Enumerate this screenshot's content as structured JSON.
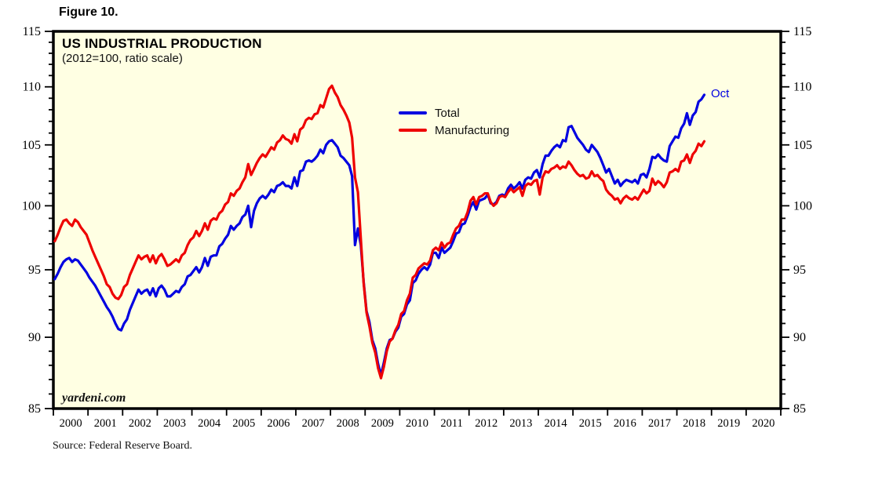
{
  "figure_label": "Figure 10.",
  "source_note": "Source: Federal Reserve Board.",
  "colors": {
    "total_line": "#0000e0",
    "manufacturing_line": "#ee0000",
    "plot_background": "#ffffe3",
    "axis": "#000000"
  },
  "chart_data": {
    "type": "line",
    "title": "US INDUSTRIAL PRODUCTION",
    "subtitle": "(2012=100, ratio scale)",
    "watermark": "yardeni.com",
    "end_label": "Oct",
    "legend_position": "top-center-inside",
    "grid": false,
    "y_axis": {
      "scale": "log-ratio",
      "min": 85,
      "max": 115,
      "major_step": 5,
      "minor_step": 1,
      "tick_labels": [
        "85",
        "90",
        "95",
        "100",
        "105",
        "110",
        "115"
      ],
      "sides": [
        "left",
        "right"
      ]
    },
    "x_axis": {
      "start_year": 2000,
      "end_year": 2021,
      "tick_every_year": true,
      "year_labels": [
        "2000",
        "2001",
        "2002",
        "2003",
        "2004",
        "2005",
        "2006",
        "2007",
        "2008",
        "2009",
        "2010",
        "2011",
        "2012",
        "2013",
        "2014",
        "2015",
        "2016",
        "2017",
        "2018",
        "2019",
        "2020"
      ]
    },
    "frequency": "monthly",
    "x_start": "2000-01",
    "x_end": "2018-10",
    "legend": [
      {
        "name": "Total",
        "color": "#0000e0"
      },
      {
        "name": "Manufacturing",
        "color": "#ee0000"
      }
    ],
    "series": [
      {
        "name": "Total",
        "color": "#0000e0",
        "values": [
          94.3,
          94.7,
          95.2,
          95.6,
          95.8,
          95.9,
          95.6,
          95.8,
          95.7,
          95.4,
          95.1,
          94.8,
          94.4,
          94.1,
          93.8,
          93.4,
          93.0,
          92.6,
          92.2,
          91.9,
          91.5,
          91.0,
          90.6,
          90.5,
          91.0,
          91.3,
          92.0,
          92.5,
          93.0,
          93.5,
          93.2,
          93.4,
          93.5,
          93.1,
          93.6,
          93.0,
          93.6,
          93.8,
          93.5,
          93.0,
          93.0,
          93.2,
          93.4,
          93.3,
          93.7,
          93.9,
          94.5,
          94.6,
          94.9,
          95.2,
          94.8,
          95.2,
          95.9,
          95.3,
          96.0,
          96.1,
          96.1,
          96.8,
          97.0,
          97.4,
          97.7,
          98.4,
          98.1,
          98.4,
          98.6,
          99.1,
          99.3,
          100.0,
          98.3,
          99.6,
          100.2,
          100.6,
          100.8,
          100.6,
          100.9,
          101.3,
          101.1,
          101.6,
          101.7,
          101.9,
          101.6,
          101.6,
          101.4,
          102.3,
          101.6,
          102.8,
          102.9,
          103.6,
          103.7,
          103.6,
          103.8,
          104.1,
          104.6,
          104.3,
          105.0,
          105.3,
          105.4,
          105.1,
          104.8,
          104.1,
          103.9,
          103.6,
          103.3,
          102.4,
          96.9,
          98.2,
          96.9,
          94.1,
          91.9,
          91.1,
          89.8,
          89.2,
          88.1,
          87.3,
          88.2,
          89.2,
          89.8,
          89.9,
          90.4,
          90.7,
          91.5,
          91.7,
          92.4,
          92.7,
          94.0,
          94.2,
          94.7,
          95.0,
          95.2,
          95.0,
          95.4,
          96.3,
          96.3,
          95.9,
          96.7,
          96.3,
          96.5,
          96.7,
          97.2,
          97.8,
          97.9,
          98.5,
          98.6,
          99.2,
          99.9,
          100.3,
          99.7,
          100.4,
          100.5,
          100.6,
          100.9,
          100.2,
          100.1,
          100.3,
          100.8,
          100.9,
          100.8,
          101.4,
          101.7,
          101.4,
          101.6,
          101.9,
          101.4,
          102.1,
          102.3,
          102.2,
          102.7,
          102.9,
          102.3,
          103.4,
          104.1,
          104.1,
          104.5,
          104.8,
          105.0,
          104.8,
          105.4,
          105.3,
          106.5,
          106.6,
          106.1,
          105.6,
          105.3,
          105.0,
          104.6,
          104.4,
          105.0,
          104.7,
          104.4,
          103.9,
          103.3,
          102.7,
          103.0,
          102.4,
          101.8,
          102.1,
          101.6,
          101.9,
          102.1,
          102.0,
          101.9,
          102.1,
          101.8,
          102.5,
          102.6,
          102.3,
          103.0,
          104.0,
          103.9,
          104.2,
          103.9,
          103.7,
          103.6,
          104.9,
          105.3,
          105.7,
          105.6,
          106.4,
          106.8,
          107.7,
          106.7,
          107.5,
          107.8,
          108.7,
          108.9,
          109.3
        ]
      },
      {
        "name": "Manufacturing",
        "color": "#ee0000",
        "values": [
          97.2,
          97.7,
          98.3,
          98.8,
          98.9,
          98.6,
          98.4,
          98.9,
          98.7,
          98.3,
          98.0,
          97.7,
          97.1,
          96.5,
          96.0,
          95.5,
          95.0,
          94.5,
          93.9,
          93.7,
          93.2,
          92.9,
          92.8,
          93.1,
          93.7,
          93.9,
          94.6,
          95.1,
          95.6,
          96.1,
          95.8,
          96.0,
          96.1,
          95.6,
          96.1,
          95.5,
          96.0,
          96.2,
          95.8,
          95.3,
          95.4,
          95.6,
          95.8,
          95.6,
          96.1,
          96.3,
          96.9,
          97.3,
          97.5,
          98.0,
          97.6,
          98.0,
          98.6,
          98.1,
          98.8,
          99.0,
          98.9,
          99.4,
          99.6,
          100.1,
          100.3,
          101.0,
          100.8,
          101.2,
          101.4,
          101.9,
          102.3,
          103.4,
          102.5,
          103.0,
          103.5,
          103.9,
          104.2,
          104.0,
          104.4,
          104.8,
          104.6,
          105.2,
          105.4,
          105.8,
          105.5,
          105.4,
          105.1,
          105.9,
          105.3,
          106.3,
          106.5,
          107.1,
          107.3,
          107.2,
          107.6,
          107.7,
          108.4,
          108.2,
          109.0,
          109.8,
          110.1,
          109.5,
          109.1,
          108.4,
          108.0,
          107.5,
          106.9,
          105.6,
          102.3,
          101.1,
          97.4,
          94.0,
          91.8,
          90.8,
          89.6,
          88.9,
          87.8,
          87.1,
          87.9,
          89.0,
          89.7,
          89.9,
          90.5,
          90.9,
          91.7,
          91.9,
          92.7,
          93.2,
          94.4,
          94.6,
          95.1,
          95.3,
          95.5,
          95.4,
          95.7,
          96.5,
          96.7,
          96.5,
          97.1,
          96.7,
          97.0,
          97.1,
          97.7,
          98.2,
          98.4,
          98.9,
          98.9,
          99.5,
          100.4,
          100.7,
          100.1,
          100.7,
          100.8,
          101.0,
          101.0,
          100.3,
          100.0,
          100.2,
          100.7,
          100.8,
          100.7,
          101.1,
          101.4,
          101.1,
          101.3,
          101.5,
          100.8,
          101.6,
          101.8,
          101.7,
          102.0,
          102.1,
          100.9,
          102.3,
          102.8,
          102.7,
          103.0,
          103.1,
          103.3,
          103.0,
          103.2,
          103.1,
          103.6,
          103.3,
          102.9,
          102.6,
          102.4,
          102.5,
          102.2,
          102.3,
          102.8,
          102.4,
          102.5,
          102.2,
          102.0,
          101.3,
          101.0,
          100.8,
          100.5,
          100.6,
          100.2,
          100.6,
          100.8,
          100.6,
          100.5,
          100.7,
          100.5,
          100.9,
          101.3,
          101.0,
          101.2,
          102.2,
          101.7,
          102.0,
          101.8,
          101.5,
          101.9,
          102.7,
          102.8,
          103.0,
          102.8,
          103.6,
          103.7,
          104.2,
          103.5,
          104.2,
          104.5,
          105.1,
          104.9,
          105.3
        ]
      }
    ]
  }
}
